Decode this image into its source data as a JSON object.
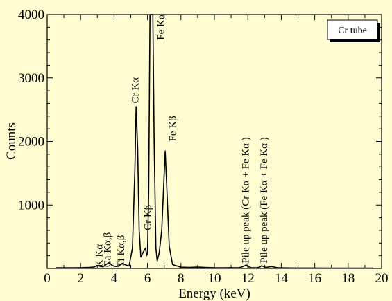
{
  "chart_data": {
    "type": "line",
    "title": "",
    "xlabel": "Energy (keV)",
    "ylabel": "Counts",
    "xlim": [
      0,
      20
    ],
    "ylim": [
      0,
      4000
    ],
    "x_ticks": [
      0,
      2,
      4,
      6,
      8,
      10,
      12,
      14,
      16,
      18,
      20
    ],
    "y_ticks": [
      1000,
      2000,
      3000,
      4000
    ],
    "grid": false,
    "legend": {
      "label": "Cr tube",
      "placement": "top-right"
    },
    "series": [
      {
        "color": "#000000",
        "x": [
          0.5,
          1.0,
          1.5,
          2.0,
          2.5,
          2.8,
          3.0,
          3.2,
          3.35,
          3.5,
          3.7,
          3.9,
          4.1,
          4.3,
          4.5,
          4.7,
          4.9,
          5.1,
          5.25,
          5.32,
          5.41,
          5.5,
          5.6,
          5.75,
          5.88,
          5.95,
          6.0,
          6.07,
          6.15,
          6.25,
          6.32,
          6.4,
          6.5,
          6.58,
          6.7,
          6.85,
          6.95,
          7.06,
          7.15,
          7.3,
          7.5,
          8.0,
          8.5,
          9.0,
          9.5,
          10.0,
          10.5,
          11.0,
          11.4,
          11.6,
          11.8,
          11.9,
          12.0,
          12.2,
          12.5,
          12.7,
          12.8,
          12.9,
          13.1,
          13.4,
          13.8,
          14.5,
          15.0,
          16.0,
          17.0,
          18.0,
          19.0,
          19.5
        ],
        "y": [
          10,
          10,
          10,
          12,
          15,
          22,
          45,
          30,
          25,
          60,
          90,
          45,
          30,
          45,
          80,
          55,
          40,
          320,
          1600,
          2550,
          1900,
          600,
          180,
          260,
          320,
          200,
          250,
          1200,
          4200,
          4200,
          4200,
          2000,
          320,
          120,
          250,
          600,
          1200,
          1850,
          1300,
          350,
          60,
          20,
          15,
          22,
          15,
          10,
          10,
          12,
          10,
          20,
          40,
          55,
          30,
          12,
          10,
          20,
          40,
          35,
          15,
          30,
          10,
          8,
          6,
          6,
          5,
          5,
          4,
          4
        ]
      }
    ],
    "annotations": [
      {
        "text": "K Kα",
        "x": 3.3,
        "y": 20
      },
      {
        "text": "Ca Kα,β",
        "x": 3.8,
        "y": 20
      },
      {
        "text": "Ti Kα,β",
        "x": 4.6,
        "y": 20
      },
      {
        "text": "Cr Kα",
        "x": 5.45,
        "y": 2600
      },
      {
        "text": "Cr Kβ",
        "x": 6.2,
        "y": 600
      },
      {
        "text": "Fe Kα",
        "x": 7.0,
        "y": 3600
      },
      {
        "text": "Fe Kβ",
        "x": 7.7,
        "y": 2000
      },
      {
        "text": "Pile up peak (Cr Kα + Fe Kα )",
        "x": 12.05,
        "y": 80
      },
      {
        "text": "Pile up peak (Fe Kα + Fe Kα )",
        "x": 13.15,
        "y": 80
      }
    ]
  }
}
